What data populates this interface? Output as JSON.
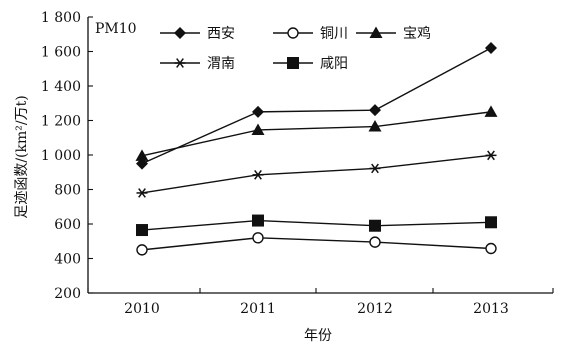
{
  "chart_data": {
    "type": "line",
    "title": "PM10",
    "xlabel": "年份",
    "ylabel": "足迹函数/(km²/万t)",
    "categories": [
      "2010",
      "2011",
      "2012",
      "2013"
    ],
    "ylim": [
      200,
      1800
    ],
    "yticks": [
      "200",
      "400",
      "600",
      "800",
      "1 000",
      "1 200",
      "1 400",
      "1 600",
      "1 800"
    ],
    "grid": false,
    "legend_position": "top-left",
    "series": [
      {
        "name": "西安",
        "marker": "diamond",
        "values": [
          950,
          1250,
          1260,
          1620
        ]
      },
      {
        "name": "铜川",
        "marker": "circle-open",
        "values": [
          450,
          520,
          495,
          458
        ]
      },
      {
        "name": "宝鸡",
        "marker": "triangle",
        "values": [
          995,
          1145,
          1165,
          1250
        ]
      },
      {
        "name": "渭南",
        "marker": "star",
        "values": [
          780,
          885,
          922,
          998
        ]
      },
      {
        "name": "咸阳",
        "marker": "square",
        "values": [
          565,
          620,
          590,
          610
        ]
      }
    ]
  }
}
